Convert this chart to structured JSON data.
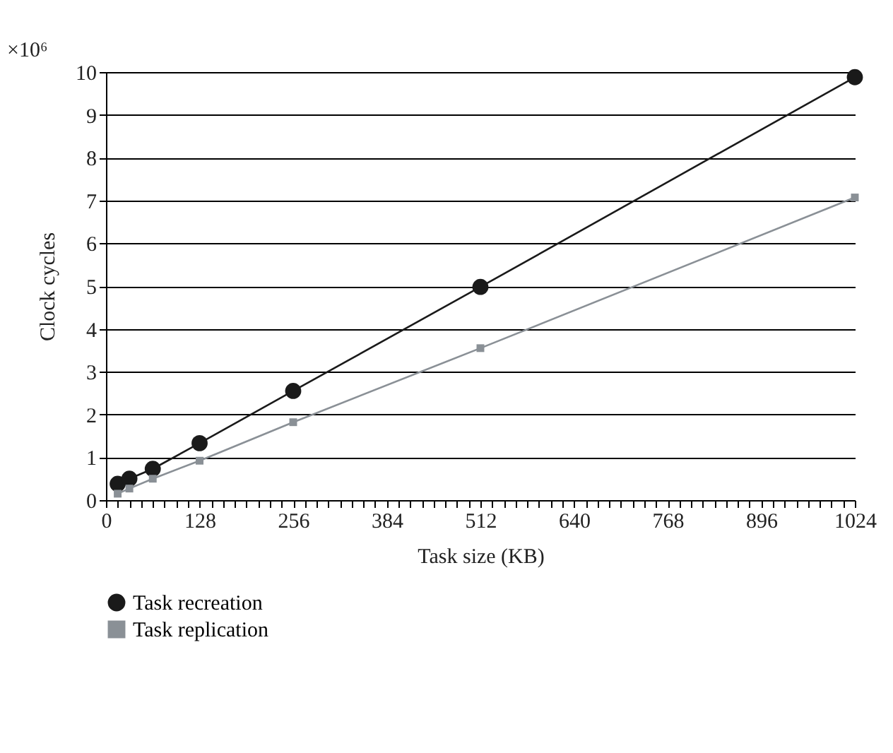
{
  "chart_data": {
    "type": "line",
    "xlabel": "Task size (KB)",
    "ylabel": "Clock cycles",
    "annotations": [
      "×10⁶"
    ],
    "x": [
      16,
      32,
      64,
      128,
      256,
      512,
      1024
    ],
    "series": [
      {
        "name": "Task recreation",
        "color": "#1a1a1a",
        "marker": "circle",
        "values": [
          0.38,
          0.5,
          0.73,
          1.33,
          2.55,
          4.98,
          9.88
        ]
      },
      {
        "name": "Task replication",
        "color": "#8a9096",
        "marker": "square",
        "values": [
          0.15,
          0.27,
          0.5,
          0.92,
          1.82,
          3.55,
          7.07
        ]
      }
    ],
    "xlim": [
      0,
      1024
    ],
    "ylim": [
      0,
      10
    ],
    "xticks": [
      0,
      {
        "value": 16,
        "label": null
      },
      {
        "value": 32,
        "label": null
      },
      {
        "value": 48,
        "label": null
      },
      {
        "value": 64,
        "label": null
      },
      {
        "value": 80,
        "label": null
      },
      {
        "value": 96,
        "label": null
      },
      {
        "value": 112,
        "label": null
      },
      128,
      {
        "value": 144,
        "label": null
      },
      {
        "value": 160,
        "label": null
      },
      {
        "value": 176,
        "label": null
      },
      {
        "value": 192,
        "label": null
      },
      {
        "value": 208,
        "label": null
      },
      {
        "value": 224,
        "label": null
      },
      {
        "value": 240,
        "label": null
      },
      256,
      {
        "value": 272,
        "label": null
      },
      {
        "value": 288,
        "label": null
      },
      {
        "value": 304,
        "label": null
      },
      {
        "value": 320,
        "label": null
      },
      {
        "value": 336,
        "label": null
      },
      {
        "value": 352,
        "label": null
      },
      {
        "value": 368,
        "label": null
      },
      384,
      {
        "value": 400,
        "label": null
      },
      {
        "value": 416,
        "label": null
      },
      {
        "value": 432,
        "label": null
      },
      {
        "value": 448,
        "label": null
      },
      {
        "value": 464,
        "label": null
      },
      {
        "value": 480,
        "label": null
      },
      {
        "value": 496,
        "label": null
      },
      512,
      {
        "value": 528,
        "label": null
      },
      {
        "value": 544,
        "label": null
      },
      {
        "value": 560,
        "label": null
      },
      {
        "value": 576,
        "label": null
      },
      {
        "value": 592,
        "label": null
      },
      {
        "value": 608,
        "label": null
      },
      {
        "value": 624,
        "label": null
      },
      640,
      {
        "value": 656,
        "label": null
      },
      {
        "value": 672,
        "label": null
      },
      {
        "value": 688,
        "label": null
      },
      {
        "value": 704,
        "label": null
      },
      {
        "value": 720,
        "label": null
      },
      {
        "value": 736,
        "label": null
      },
      {
        "value": 752,
        "label": null
      },
      768,
      {
        "value": 784,
        "label": null
      },
      {
        "value": 800,
        "label": null
      },
      {
        "value": 816,
        "label": null
      },
      {
        "value": 832,
        "label": null
      },
      {
        "value": 848,
        "label": null
      },
      {
        "value": 864,
        "label": null
      },
      {
        "value": 880,
        "label": null
      },
      896,
      {
        "value": 912,
        "label": null
      },
      {
        "value": 928,
        "label": null
      },
      {
        "value": 944,
        "label": null
      },
      {
        "value": 960,
        "label": null
      },
      {
        "value": 976,
        "label": null
      },
      {
        "value": 992,
        "label": null
      },
      {
        "value": 1008,
        "label": null
      },
      1024
    ],
    "yticks": [
      0,
      1,
      2,
      3,
      4,
      5,
      6,
      7,
      8,
      9,
      10
    ],
    "grid": "y",
    "legend": "bottom",
    "line_style": "solid"
  }
}
